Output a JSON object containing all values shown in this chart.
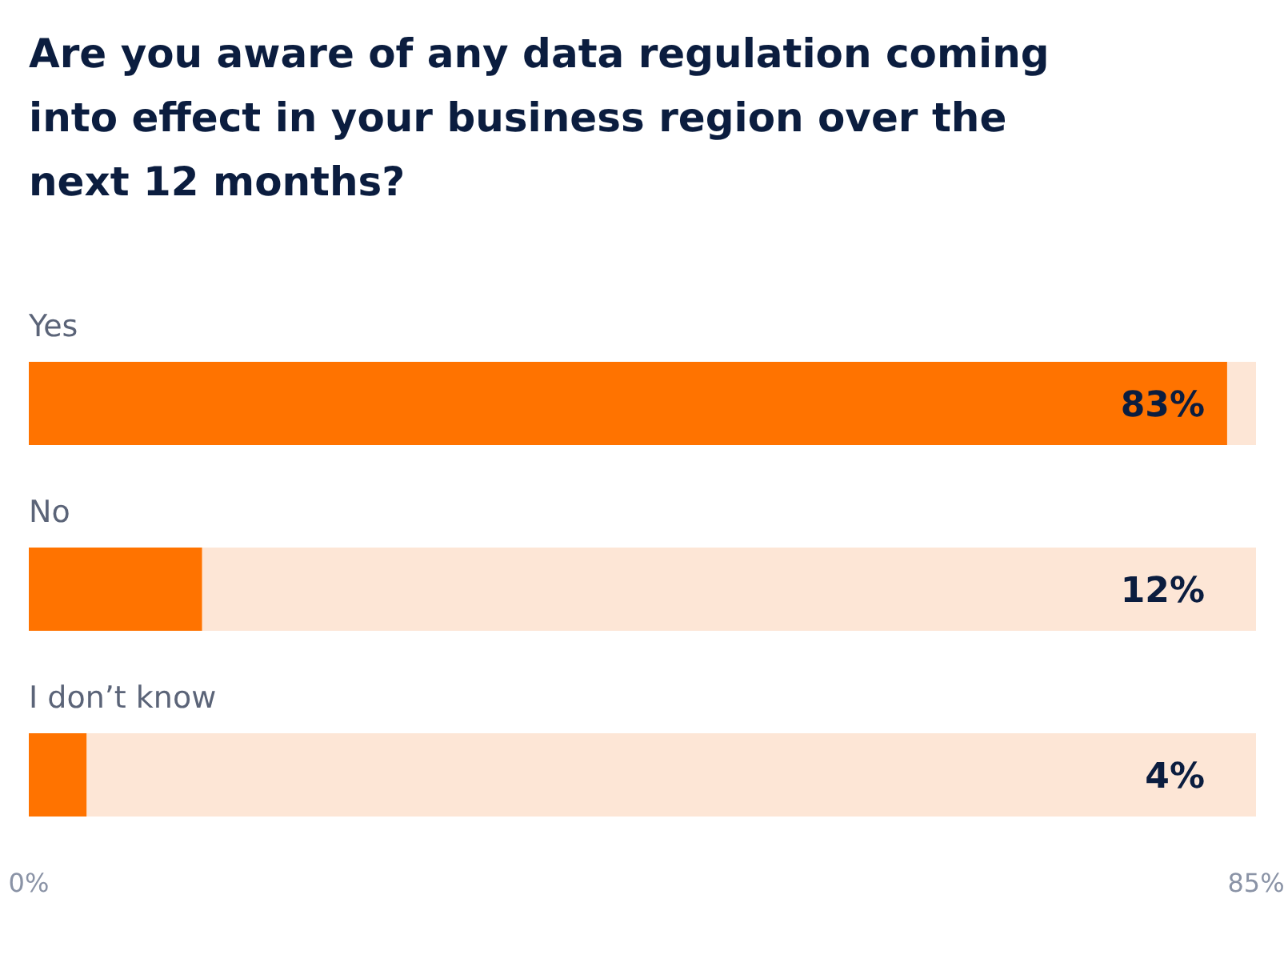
{
  "chart_data": {
    "type": "bar",
    "orientation": "horizontal",
    "title": "Are you aware of any data regulation coming into effect in your business region over the next 12 months?",
    "categories": [
      "Yes",
      "No",
      "I don’t know"
    ],
    "values": [
      83,
      12,
      4
    ],
    "value_labels": [
      "83%",
      "12%",
      "4%"
    ],
    "color": "#ff7300",
    "xlim": [
      0,
      85
    ],
    "xticks": [
      {
        "value": 0,
        "label": "0%"
      },
      {
        "value": 85,
        "label": "85%"
      }
    ],
    "grid": false
  }
}
